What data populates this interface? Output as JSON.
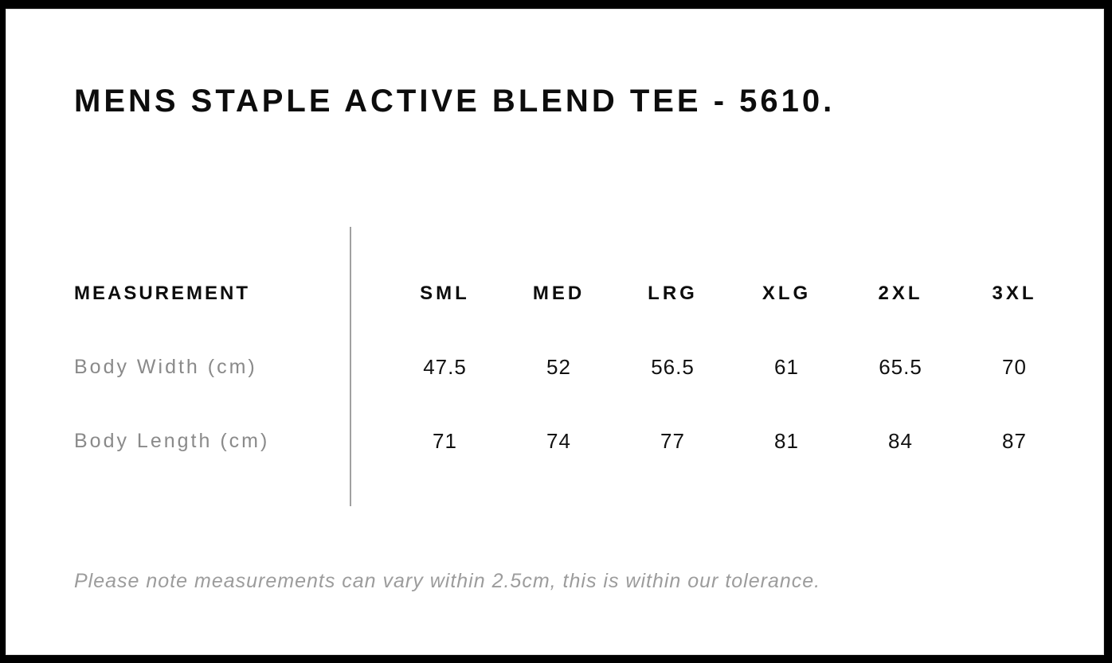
{
  "title": "MENS STAPLE ACTIVE BLEND TEE - 5610.",
  "table": {
    "measurement_header": "MEASUREMENT",
    "size_headers": [
      "SML",
      "MED",
      "LRG",
      "XLG",
      "2XL",
      "3XL"
    ],
    "rows": [
      {
        "label": "Body Width (cm)",
        "values": [
          "47.5",
          "52",
          "56.5",
          "61",
          "65.5",
          "70"
        ]
      },
      {
        "label": "Body Length (cm)",
        "values": [
          "71",
          "74",
          "77",
          "81",
          "84",
          "87"
        ]
      }
    ]
  },
  "note": "Please note measurements can vary within 2.5cm, this is within our tolerance.",
  "colors": {
    "frame": "#000000",
    "background": "#ffffff",
    "text_primary": "#0d0d0d",
    "row_label_gray": "#8a8a8a",
    "note_gray": "#9c9c9c",
    "divider_gray": "#a0a0a0"
  },
  "chart_data": {
    "type": "table",
    "title": "MENS STAPLE ACTIVE BLEND TEE - 5610.",
    "columns": [
      "MEASUREMENT",
      "SML",
      "MED",
      "LRG",
      "XLG",
      "2XL",
      "3XL"
    ],
    "rows": [
      [
        "Body Width (cm)",
        47.5,
        52,
        56.5,
        61,
        65.5,
        70
      ],
      [
        "Body Length (cm)",
        71,
        74,
        77,
        81,
        84,
        87
      ]
    ],
    "footnote": "Please note measurements can vary within 2.5cm, this is within our tolerance."
  }
}
